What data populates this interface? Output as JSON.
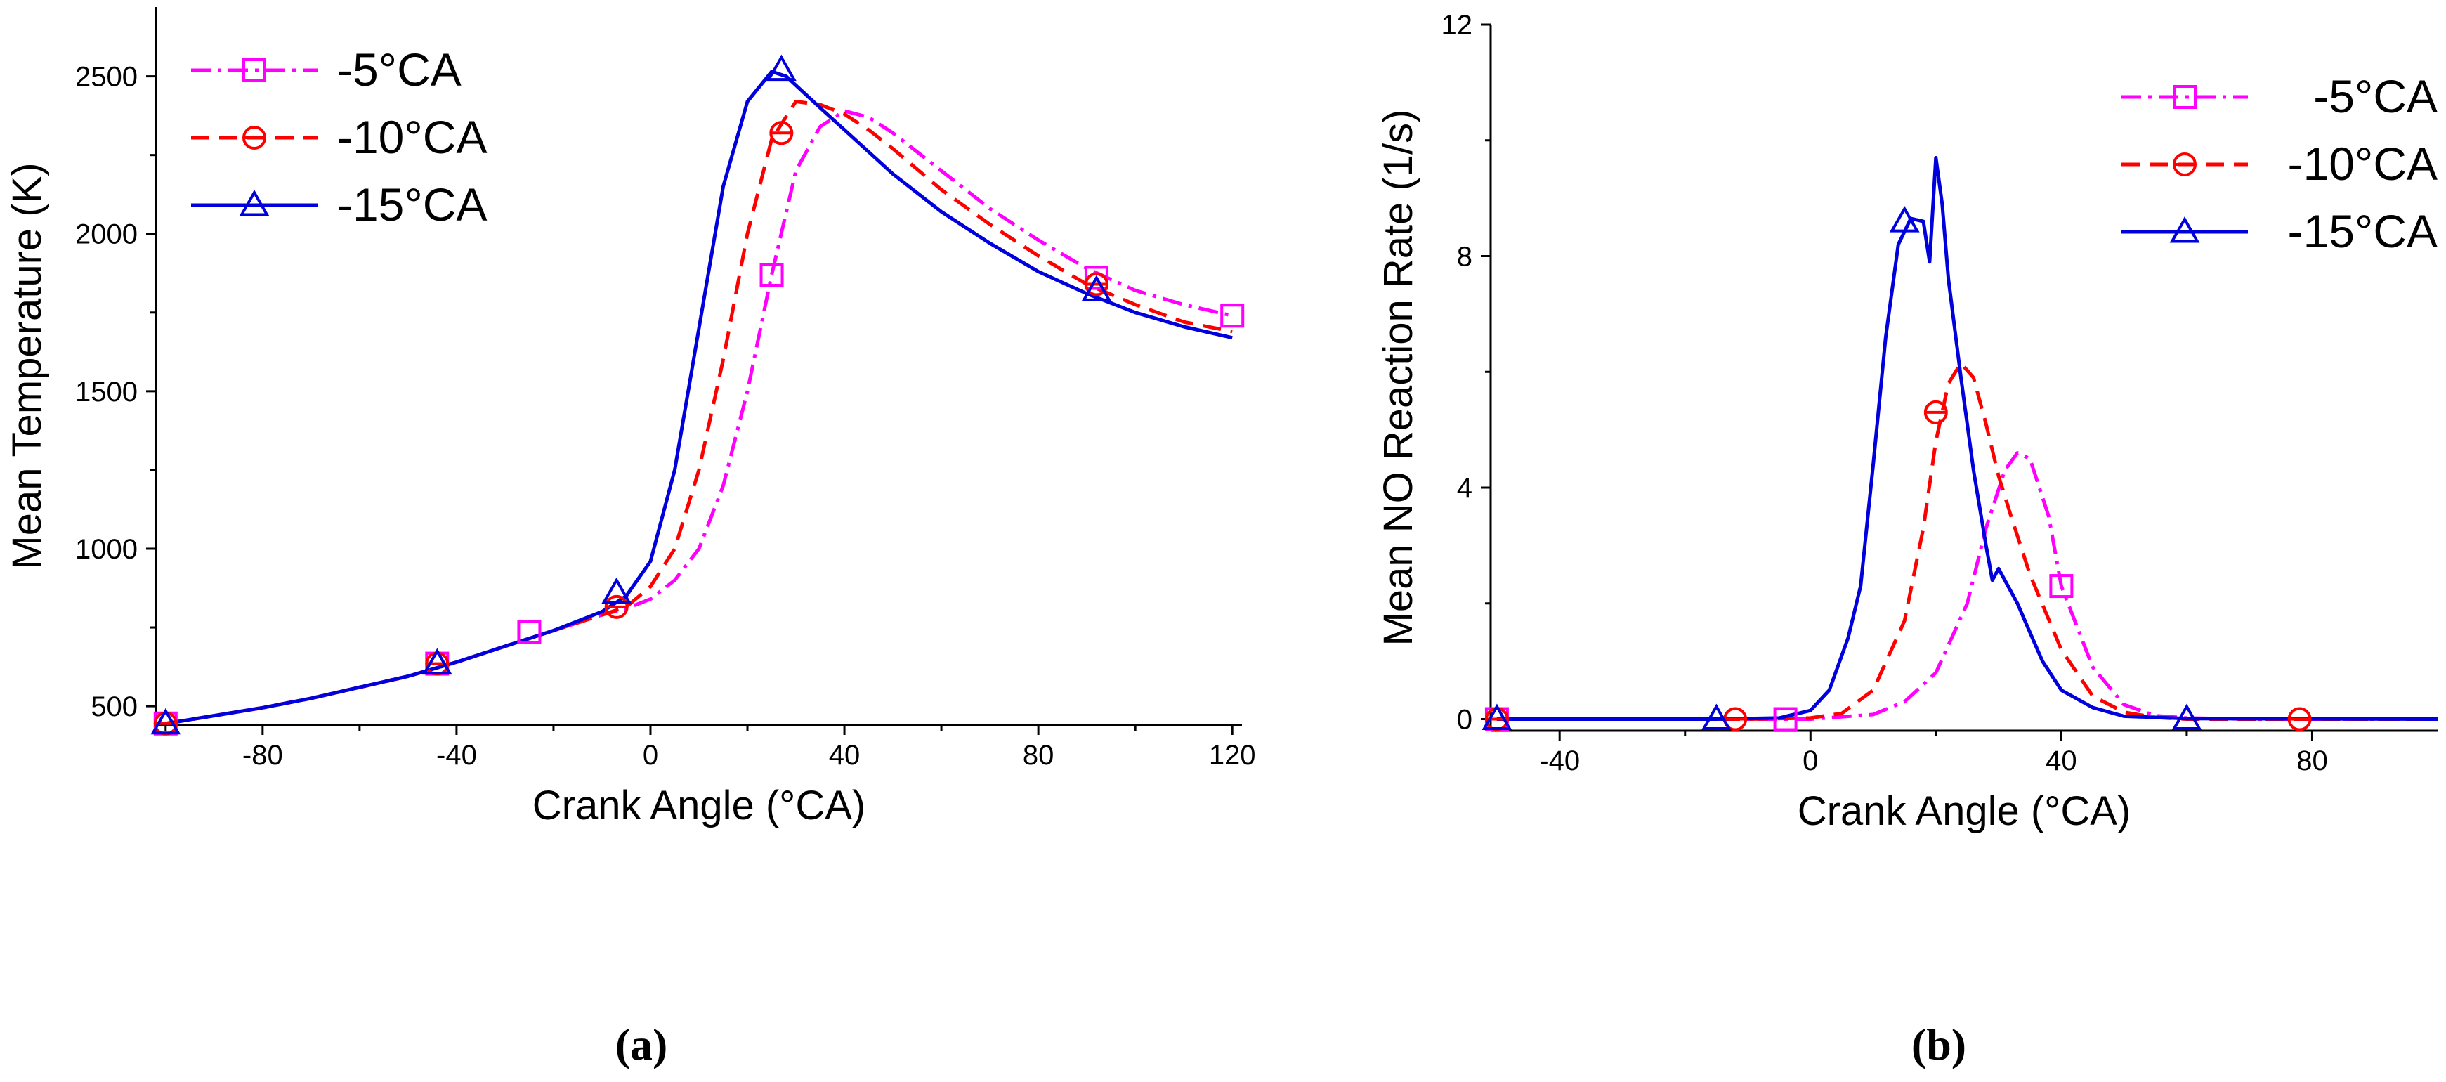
{
  "chart_data": [
    {
      "type": "line",
      "panel": "(a)",
      "xlabel": "Crank Angle (°CA)",
      "ylabel": "Mean Temperature (K)",
      "xlim": [
        -102,
        122
      ],
      "ylim": [
        440,
        2720
      ],
      "xticks": [
        -80,
        -40,
        0,
        40,
        80,
        120
      ],
      "yticks": [
        500,
        1000,
        1500,
        2000,
        2500
      ],
      "legend_position": "top-left",
      "series": [
        {
          "name": "-5°CA",
          "color": "#ff00ff",
          "dash": "dashdot",
          "marker": "square",
          "x": [
            -100,
            -90,
            -80,
            -70,
            -60,
            -50,
            -40,
            -30,
            -20,
            -10,
            -5,
            0,
            5,
            10,
            15,
            20,
            25,
            30,
            35,
            40,
            45,
            50,
            60,
            70,
            80,
            90,
            100,
            110,
            120
          ],
          "y": [
            445,
            470,
            495,
            525,
            560,
            595,
            640,
            690,
            740,
            790,
            810,
            840,
            900,
            1000,
            1200,
            1500,
            1870,
            2200,
            2340,
            2390,
            2370,
            2320,
            2200,
            2080,
            1980,
            1890,
            1820,
            1775,
            1740
          ],
          "markers_x": [
            -100,
            -44,
            -25,
            25,
            92,
            120
          ],
          "markers_y": [
            445,
            635,
            735,
            1870,
            1860,
            1740
          ]
        },
        {
          "name": "-10°CA",
          "color": "#ff0000",
          "dash": "dashed",
          "marker": "circle",
          "x": [
            -100,
            -90,
            -80,
            -70,
            -60,
            -50,
            -40,
            -30,
            -20,
            -10,
            -5,
            0,
            5,
            10,
            15,
            20,
            25,
            30,
            35,
            40,
            45,
            50,
            60,
            70,
            80,
            90,
            100,
            110,
            120
          ],
          "y": [
            445,
            470,
            495,
            525,
            560,
            595,
            640,
            690,
            740,
            790,
            815,
            880,
            1000,
            1250,
            1600,
            2000,
            2300,
            2420,
            2410,
            2380,
            2330,
            2270,
            2140,
            2030,
            1930,
            1840,
            1775,
            1720,
            1690
          ],
          "markers_x": [
            -100,
            -44,
            -7,
            27,
            92
          ],
          "markers_y": [
            445,
            635,
            815,
            2320,
            1840
          ]
        },
        {
          "name": "-15°CA",
          "color": "#0000dd",
          "dash": "solid",
          "marker": "triangle",
          "x": [
            -100,
            -90,
            -80,
            -70,
            -60,
            -50,
            -40,
            -30,
            -20,
            -10,
            -5,
            0,
            5,
            10,
            15,
            20,
            25,
            28,
            35,
            40,
            45,
            50,
            60,
            70,
            80,
            90,
            100,
            110,
            120
          ],
          "y": [
            445,
            470,
            495,
            525,
            560,
            595,
            640,
            690,
            740,
            800,
            850,
            960,
            1250,
            1700,
            2150,
            2420,
            2515,
            2500,
            2400,
            2330,
            2260,
            2190,
            2070,
            1970,
            1880,
            1810,
            1750,
            1705,
            1670
          ],
          "markers_x": [
            -100,
            -44,
            -7,
            27,
            92
          ],
          "markers_y": [
            445,
            635,
            860,
            2520,
            1820
          ]
        }
      ]
    },
    {
      "type": "line",
      "panel": "(b)",
      "xlabel": "Crank Angle (°CA)",
      "ylabel": "Mean NO Reaction Rate (1/s)",
      "xlim": [
        -51,
        100
      ],
      "ylim": [
        -0.2,
        12
      ],
      "xticks": [
        -40,
        0,
        40,
        80
      ],
      "yticks": [
        0,
        4,
        8,
        12
      ],
      "legend_position": "top-right",
      "series": [
        {
          "name": "-5°CA",
          "color": "#ff00ff",
          "dash": "dashdot",
          "marker": "square",
          "x": [
            -50,
            -10,
            0,
            10,
            15,
            20,
            25,
            28,
            31,
            33,
            35,
            38,
            40,
            45,
            50,
            55,
            60,
            70,
            80,
            100
          ],
          "y": [
            0,
            0,
            0,
            0.08,
            0.3,
            0.8,
            2.0,
            3.3,
            4.3,
            4.6,
            4.5,
            3.5,
            2.3,
            0.9,
            0.25,
            0.06,
            0.02,
            0,
            0,
            0
          ],
          "markers_x": [
            -50,
            -4,
            40
          ],
          "markers_y": [
            0,
            0,
            2.3
          ]
        },
        {
          "name": "-10°CA",
          "color": "#ff0000",
          "dash": "dashed",
          "marker": "circle",
          "x": [
            -50,
            -10,
            0,
            5,
            10,
            15,
            18,
            20,
            22,
            24,
            26,
            28,
            30,
            32,
            35,
            40,
            45,
            50,
            55,
            60,
            80,
            100
          ],
          "y": [
            0,
            0,
            0.02,
            0.1,
            0.5,
            1.7,
            3.3,
            4.8,
            5.8,
            6.15,
            5.9,
            5.1,
            4.2,
            3.5,
            2.5,
            1.2,
            0.4,
            0.12,
            0.03,
            0,
            0,
            0
          ],
          "markers_x": [
            -50,
            -12,
            20,
            78
          ],
          "markers_y": [
            0,
            0,
            5.3,
            0
          ]
        },
        {
          "name": "-15°CA",
          "color": "#0000dd",
          "dash": "solid",
          "marker": "triangle",
          "x": [
            -50,
            -15,
            -5,
            0,
            3,
            6,
            8,
            10,
            12,
            14,
            16,
            18,
            19,
            20,
            21,
            22,
            24,
            26,
            28,
            29,
            30,
            31,
            33,
            35,
            37,
            40,
            45,
            50,
            60,
            100
          ],
          "y": [
            0,
            0,
            0.02,
            0.15,
            0.5,
            1.4,
            2.3,
            4.4,
            6.6,
            8.2,
            8.65,
            8.6,
            7.9,
            9.7,
            8.9,
            7.6,
            5.9,
            4.3,
            3.0,
            2.4,
            2.6,
            2.4,
            2.0,
            1.5,
            1.0,
            0.5,
            0.2,
            0.05,
            0.01,
            0
          ],
          "markers_x": [
            -50,
            -15,
            15,
            60
          ],
          "markers_y": [
            0,
            0,
            8.6,
            0
          ]
        }
      ]
    }
  ]
}
